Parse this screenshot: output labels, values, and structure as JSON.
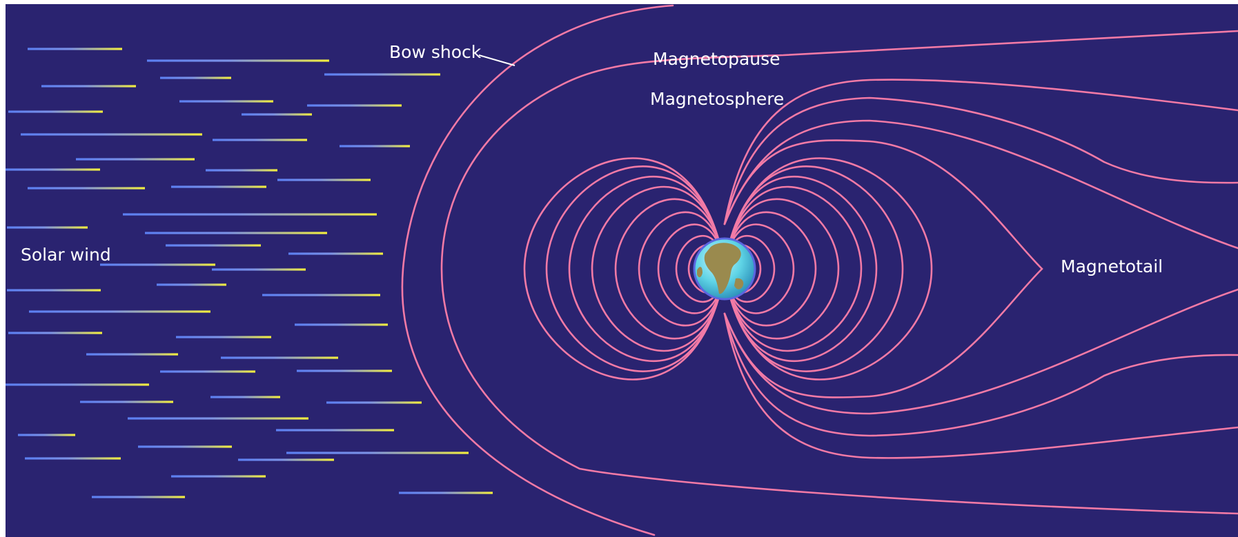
{
  "labels": {
    "bow_shock": "Bow shock",
    "magnetopause": "Magnetopause",
    "magnetosphere": "Magnetosphere",
    "magnetotail": "Magnetotail",
    "solar_wind": "Solar wind"
  },
  "colors": {
    "background": "#2a2370",
    "field_lines": "#f27aa6",
    "label_text": "#ffffff",
    "wind_streak_start": "#5b7ff2",
    "wind_streak_end": "#f3ee3c",
    "earth_ocean": "#5fd4e6",
    "earth_land": "#9a8a4e"
  },
  "icons": {
    "earth": "earth-globe-icon"
  }
}
